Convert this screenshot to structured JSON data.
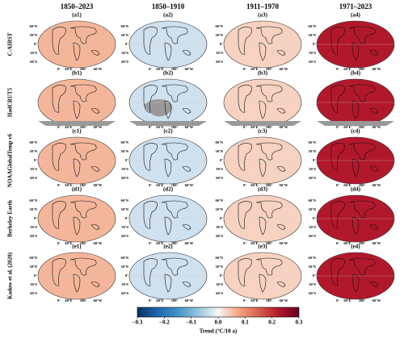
{
  "columns": [
    "1850–2023",
    "1850–1910",
    "1911–1970",
    "1971–2023"
  ],
  "rows": [
    {
      "name": "C-AIRST",
      "panels": [
        "(a1)",
        "(a2)",
        "(a3)",
        "(a4)"
      ]
    },
    {
      "name": "HadCRUT5",
      "panels": [
        "(b1)",
        "(b2)",
        "(b3)",
        "(b4)"
      ]
    },
    {
      "name": "NOAAGlobalTemp v6",
      "panels": [
        "(c1)",
        "(c2)",
        "(c3)",
        "(c4)"
      ]
    },
    {
      "name": "Berkeley Earth",
      "panels": [
        "(d1)",
        "(d2)",
        "(d3)",
        "(d4)"
      ]
    },
    {
      "name": "Kadow et al. (2020)",
      "panels": [
        "(e1)",
        "(e2)",
        "(e3)",
        "(e4)"
      ]
    }
  ],
  "column_colors": [
    "#f4b69a",
    "#cfe0ee",
    "#f7d2c0",
    "#b2182b"
  ],
  "missing_color": "#999999",
  "lat_labels": [
    "60°N",
    "30°N",
    "0°",
    "30°S",
    "60°S"
  ],
  "lon_labels": [
    "0°",
    "60°E",
    "180°",
    "60°W"
  ],
  "colorbar": {
    "label": "Trend (°C/10 a)",
    "lim": [
      -0.3,
      0.3
    ],
    "ticks": [
      {
        "value": -0.3,
        "label": "−0.3"
      },
      {
        "value": -0.2,
        "label": "−0.2"
      },
      {
        "value": -0.1,
        "label": "−0.1"
      },
      {
        "value": 0,
        "label": "0.0"
      },
      0.1,
      0.2,
      0.3
    ],
    "colors": [
      "#053061",
      "#2166ac",
      "#4393c3",
      "#92c5de",
      "#f7f7f7",
      "#f4a582",
      "#d6604d",
      "#b2182b",
      "#67001f"
    ]
  }
}
